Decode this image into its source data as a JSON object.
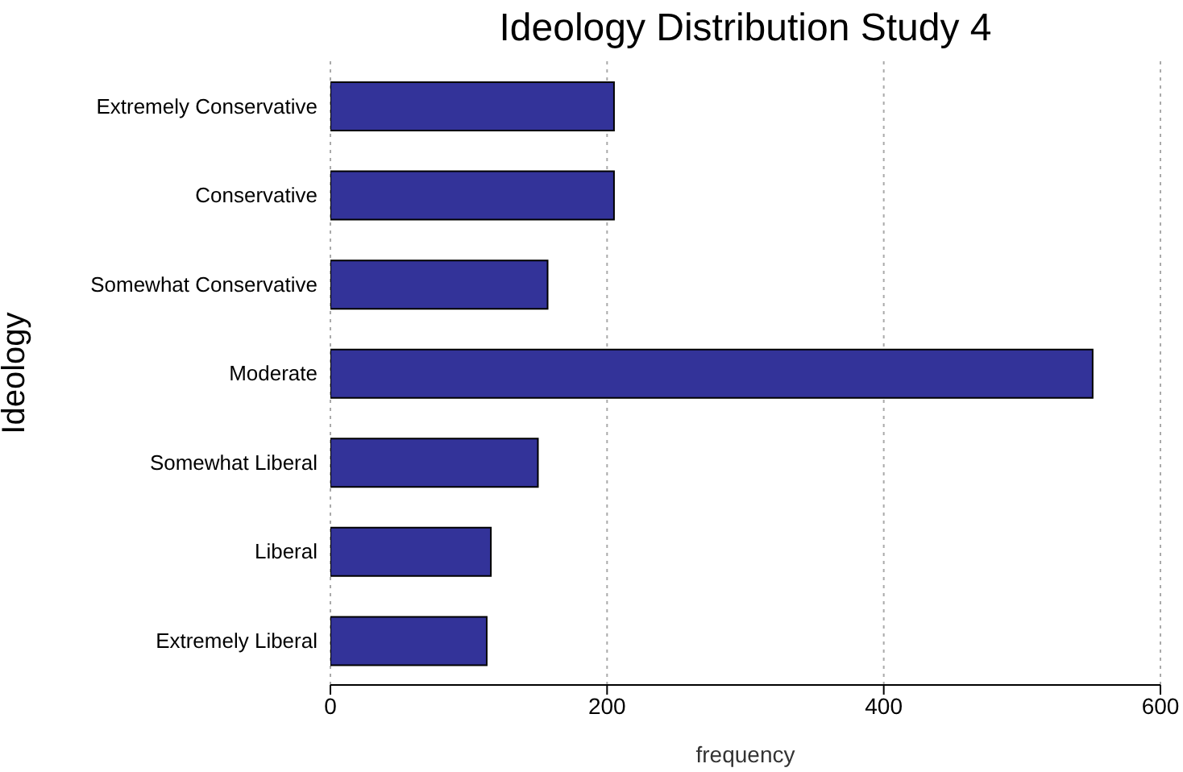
{
  "chart_data": {
    "type": "bar",
    "orientation": "horizontal",
    "title": "Ideology Distribution Study 4",
    "xlabel": "frequency",
    "ylabel": "Ideology",
    "categories": [
      "Extremely Conservative",
      "Conservative",
      "Somewhat Conservative",
      "Moderate",
      "Somewhat Liberal",
      "Liberal",
      "Extremely Liberal"
    ],
    "values": [
      205,
      205,
      157,
      551,
      150,
      116,
      113
    ],
    "color": "#333399",
    "xlim": [
      0,
      600
    ],
    "xticks": [
      0,
      200,
      400,
      600
    ],
    "grid": "x"
  }
}
